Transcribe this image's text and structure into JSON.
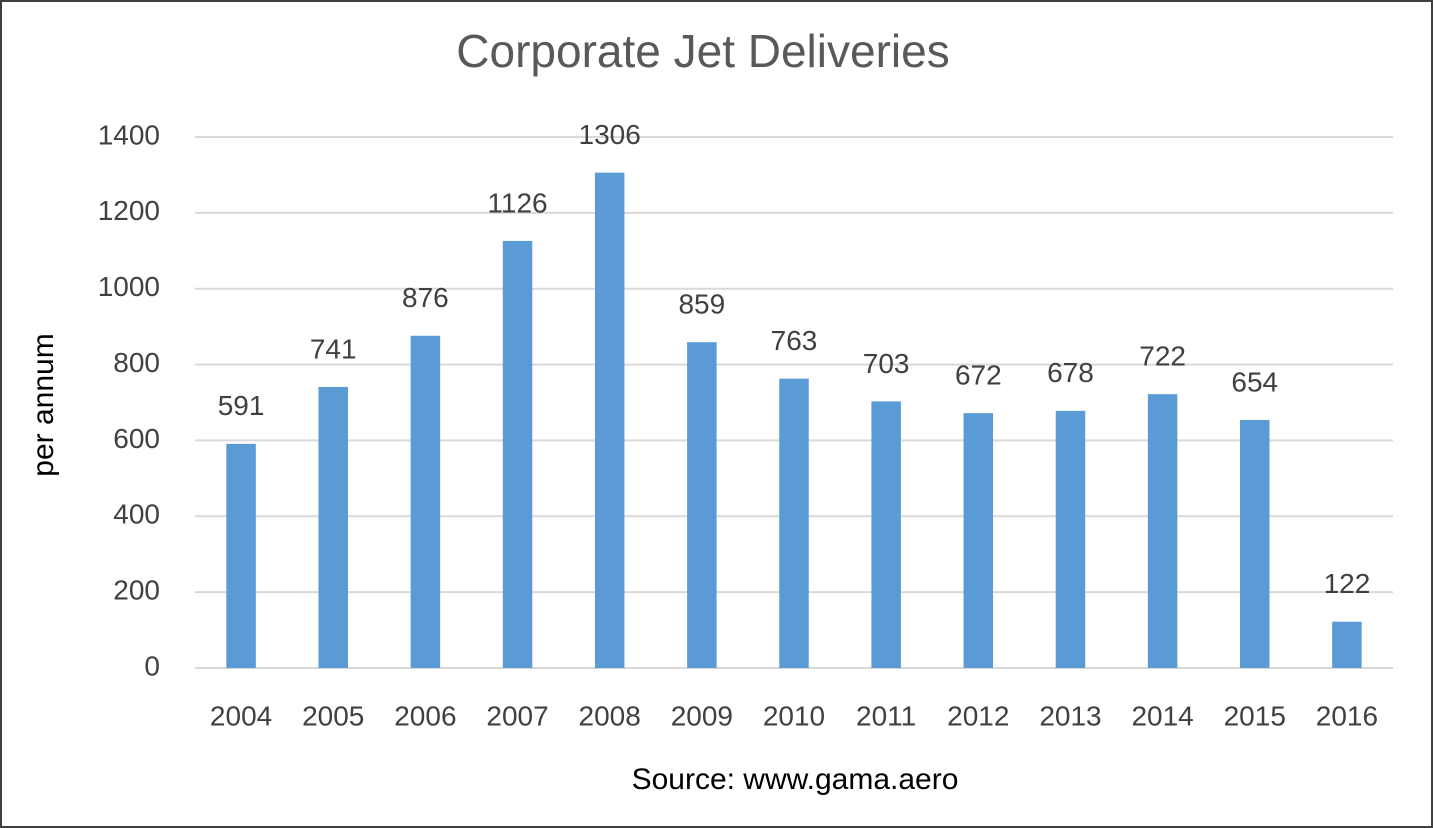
{
  "chart_data": {
    "type": "bar",
    "title": "Corporate Jet Deliveries",
    "y_label": "per annum",
    "x_label": "Source: www.gama.aero",
    "categories": [
      "2004",
      "2005",
      "2006",
      "2007",
      "2008",
      "2009",
      "2010",
      "2011",
      "2012",
      "2013",
      "2014",
      "2015",
      "2016"
    ],
    "values": [
      591,
      741,
      876,
      1126,
      1306,
      859,
      763,
      703,
      672,
      678,
      722,
      654,
      122
    ],
    "color": "#5b9bd5",
    "ylim": [
      0,
      1400
    ],
    "yticks": [
      0,
      200,
      400,
      600,
      800,
      1000,
      1200,
      1400
    ],
    "grid": true
  }
}
